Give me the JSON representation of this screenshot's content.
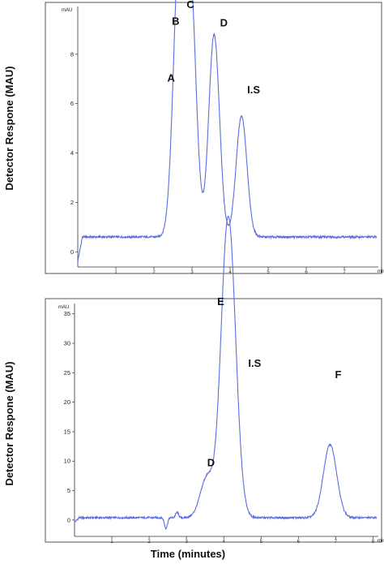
{
  "figure": {
    "y_axis_label": "Detector Respone (MAU)",
    "x_axis_label": "Time (minutes)"
  },
  "chart_data": [
    {
      "type": "line",
      "unit_y": "mAU",
      "unit_x": "min",
      "xlim": [
        0,
        7.85
      ],
      "ylim": [
        -0.55,
        9.8
      ],
      "xticks": [
        1,
        2,
        3,
        4,
        5,
        6,
        7
      ],
      "yticks": [
        0,
        2,
        4,
        6,
        8
      ],
      "baseline": 0.6,
      "peaks": [
        {
          "label": "A",
          "rt": 2.6,
          "height": 6.3
        },
        {
          "label": "B",
          "rt": 2.74,
          "height": 8.6
        },
        {
          "label": "C",
          "rt": 2.98,
          "height": 9.4
        },
        {
          "label": "D",
          "rt": 3.58,
          "height": 8.8
        },
        {
          "label": "I.S",
          "rt": 4.3,
          "height": 5.5
        }
      ],
      "color": "#5b6ee0"
    },
    {
      "type": "line",
      "unit_y": "mAU",
      "unit_x": "min",
      "xlim": [
        0,
        8.1
      ],
      "ylim": [
        -2.5,
        36.2
      ],
      "xticks": [
        1,
        2,
        3,
        4,
        5,
        6,
        7,
        8
      ],
      "yticks": [
        0,
        5,
        10,
        15,
        20,
        25,
        30,
        35
      ],
      "baseline": 0.4,
      "peaks": [
        {
          "label": "D",
          "rt": 3.55,
          "height": 7.2
        },
        {
          "label": "E",
          "rt": 4.07,
          "height": 35.5
        },
        {
          "label": "I.S",
          "rt": 4.22,
          "height": 20.8
        },
        {
          "label": "F",
          "rt": 6.85,
          "height": 12.8
        }
      ],
      "color": "#5b6ee0"
    }
  ]
}
